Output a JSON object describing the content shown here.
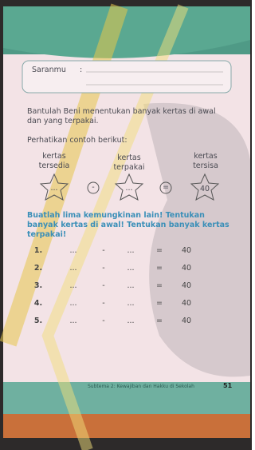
{
  "saran": {
    "label": "Saranmu",
    "colon": ":"
  },
  "instruction": "Bantulah Beni menentukan banyak kertas di awal dan yang terpakai.",
  "example": {
    "prompt": "Perhatikan contoh berikut:",
    "labels": [
      "kertas tersedia",
      "kertas terpakai",
      "kertas tersisa"
    ],
    "stars": [
      "...",
      "...",
      "40"
    ],
    "operators": [
      "-",
      "="
    ]
  },
  "task": "Buatlah lima kemungkinan lain! Tentukan banyak kertas di awal! Tentukan banyak kertas terpakai!",
  "rows": [
    [
      "1.",
      "...",
      "-",
      "...",
      "=",
      "40"
    ],
    [
      "2.",
      "...",
      "-",
      "...",
      "=",
      "40"
    ],
    [
      "3.",
      "...",
      "-",
      "...",
      "=",
      "40"
    ],
    [
      "4.",
      "...",
      "-",
      "...",
      "=",
      "40"
    ],
    [
      "5.",
      "...",
      "-",
      "...",
      "=",
      "40"
    ]
  ],
  "footer": {
    "text": "Subtema 2: Kewajiban dan Hakku di Sekolah",
    "page": "51"
  }
}
